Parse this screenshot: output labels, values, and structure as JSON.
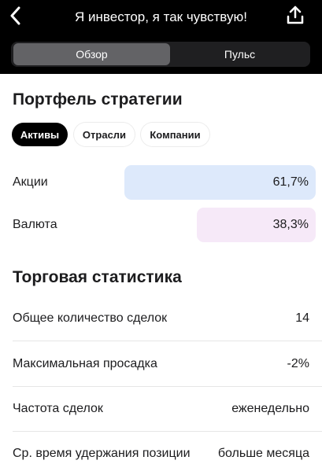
{
  "header": {
    "title": "Я инвестор, я так чувствую!",
    "back_icon": "chevron-left-icon",
    "share_icon": "share-upload-icon"
  },
  "segments": [
    {
      "label": "Обзор",
      "active": true
    },
    {
      "label": "Пульс",
      "active": false
    }
  ],
  "portfolio": {
    "title": "Портфель стратегии",
    "filters": [
      {
        "label": "Активы",
        "active": true
      },
      {
        "label": "Отрасли",
        "active": false
      },
      {
        "label": "Компании",
        "active": false
      }
    ],
    "allocations": [
      {
        "label": "Акции",
        "value": "61,7%",
        "fraction": 0.617,
        "color": "#dde9fb"
      },
      {
        "label": "Валюта",
        "value": "38,3%",
        "fraction": 0.383,
        "color": "#f6e9f8"
      }
    ]
  },
  "stats": {
    "title": "Торговая статистика",
    "rows": [
      {
        "label": "Общее количество сделок",
        "value": "14"
      },
      {
        "label": "Максимальная просадка",
        "value": "-2%"
      },
      {
        "label": "Частота сделок",
        "value": "еженедельно"
      },
      {
        "label": "Ср. время удержания позиции",
        "value": "больше месяца"
      }
    ]
  },
  "colors": {
    "header_bg": "#000000",
    "segment_active": "#636366",
    "segment_bg": "#1f1f21"
  }
}
